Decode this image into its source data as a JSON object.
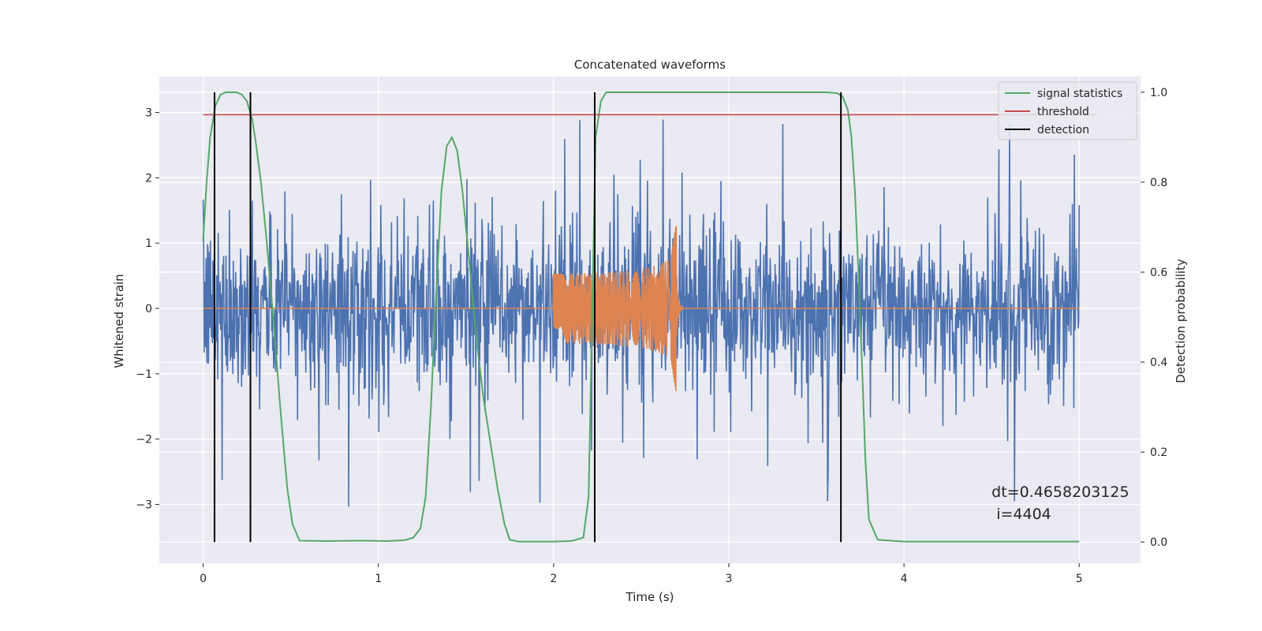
{
  "chart_data": {
    "type": "line",
    "title": "Concatenated waveforms",
    "xlabel": "Time (s)",
    "ylabel": "Whitened strain",
    "ylabel_right": "Detection probability",
    "xlim": [
      -0.25,
      5.35
    ],
    "ylim": [
      -3.9,
      3.55
    ],
    "ylim_right": [
      -0.047,
      1.035
    ],
    "xticks": [
      0,
      1,
      2,
      3,
      4,
      5
    ],
    "yticks": [
      -3,
      -2,
      -1,
      0,
      1,
      2,
      3
    ],
    "yticks_right": [
      0.0,
      0.2,
      0.4,
      0.6,
      0.8,
      1.0
    ],
    "xtick_labels": [
      "0",
      "1",
      "2",
      "3",
      "4",
      "5"
    ],
    "ytick_labels": [
      "−3",
      "−2",
      "−1",
      "0",
      "1",
      "2",
      "3"
    ],
    "ytick_labels_right": [
      "0.0",
      "0.2",
      "0.4",
      "0.6",
      "0.8",
      "1.0"
    ],
    "grid": true,
    "legend_position": "top-right",
    "colors": {
      "strain": "#4c72b0",
      "injection": "#dd8452",
      "statistic": "#55a868",
      "threshold": "#c44e52",
      "detection": "#000000",
      "background": "#eaeaf2"
    },
    "series": [
      {
        "name": "",
        "axis": "left",
        "kind": "noise",
        "x_range": [
          0,
          5
        ],
        "typical_range": [
          -1.3,
          1.5
        ],
        "peaks_max": 2.98,
        "peaks_min": -3.65
      },
      {
        "name": "",
        "axis": "left",
        "kind": "chirp",
        "x_range": [
          0,
          5
        ],
        "chirp_start": 2.0,
        "merger_time": 2.7,
        "start_amplitude": 0.3,
        "peak_amplitude": 1.3,
        "min_value": -1.02
      },
      {
        "name": "signal statistics",
        "axis": "right",
        "x": [
          0,
          0.02,
          0.04,
          0.07,
          0.1,
          0.13,
          0.16,
          0.19,
          0.22,
          0.25,
          0.28,
          0.3,
          0.33,
          0.36,
          0.4,
          0.44,
          0.48,
          0.51,
          0.55,
          0.7,
          0.9,
          1.05,
          1.15,
          1.2,
          1.24,
          1.27,
          1.3,
          1.33,
          1.36,
          1.39,
          1.42,
          1.45,
          1.48,
          1.52,
          1.56,
          1.6,
          1.64,
          1.68,
          1.72,
          1.75,
          1.8,
          1.9,
          2.0,
          2.1,
          2.17,
          2.2,
          2.22,
          2.24,
          2.27,
          2.3,
          2.4,
          2.6,
          3.0,
          3.4,
          3.55,
          3.62,
          3.65,
          3.68,
          3.7,
          3.72,
          3.74,
          3.76,
          3.78,
          3.8,
          3.85,
          4.0,
          4.5,
          5.0
        ],
        "values": [
          0.67,
          0.8,
          0.9,
          0.97,
          0.995,
          1.0,
          1.0,
          1.0,
          0.995,
          0.98,
          0.94,
          0.89,
          0.8,
          0.68,
          0.5,
          0.3,
          0.12,
          0.04,
          0.003,
          0.002,
          0.003,
          0.002,
          0.004,
          0.01,
          0.03,
          0.1,
          0.3,
          0.55,
          0.78,
          0.88,
          0.9,
          0.87,
          0.78,
          0.62,
          0.45,
          0.32,
          0.22,
          0.12,
          0.04,
          0.005,
          0.001,
          0.001,
          0.001,
          0.002,
          0.01,
          0.1,
          0.5,
          0.9,
          0.98,
          1.0,
          1.0,
          1.0,
          1.0,
          1.0,
          1.0,
          0.998,
          0.99,
          0.96,
          0.9,
          0.78,
          0.6,
          0.4,
          0.18,
          0.05,
          0.005,
          0.001,
          0.001,
          0.001
        ]
      },
      {
        "name": "threshold",
        "axis": "right",
        "x": [
          0,
          5.1
        ],
        "values": [
          0.95,
          0.95
        ]
      }
    ],
    "detections": {
      "name": "detection",
      "x": [
        0.065,
        0.27,
        2.235,
        3.64
      ],
      "y_range": [
        0,
        1
      ]
    },
    "legend": [
      "signal statistics",
      "threshold",
      "detection"
    ],
    "annotation": {
      "line1": "dt=0.4658203125",
      "line2": " i=4404",
      "x": 4.5,
      "y": 0.1
    }
  }
}
